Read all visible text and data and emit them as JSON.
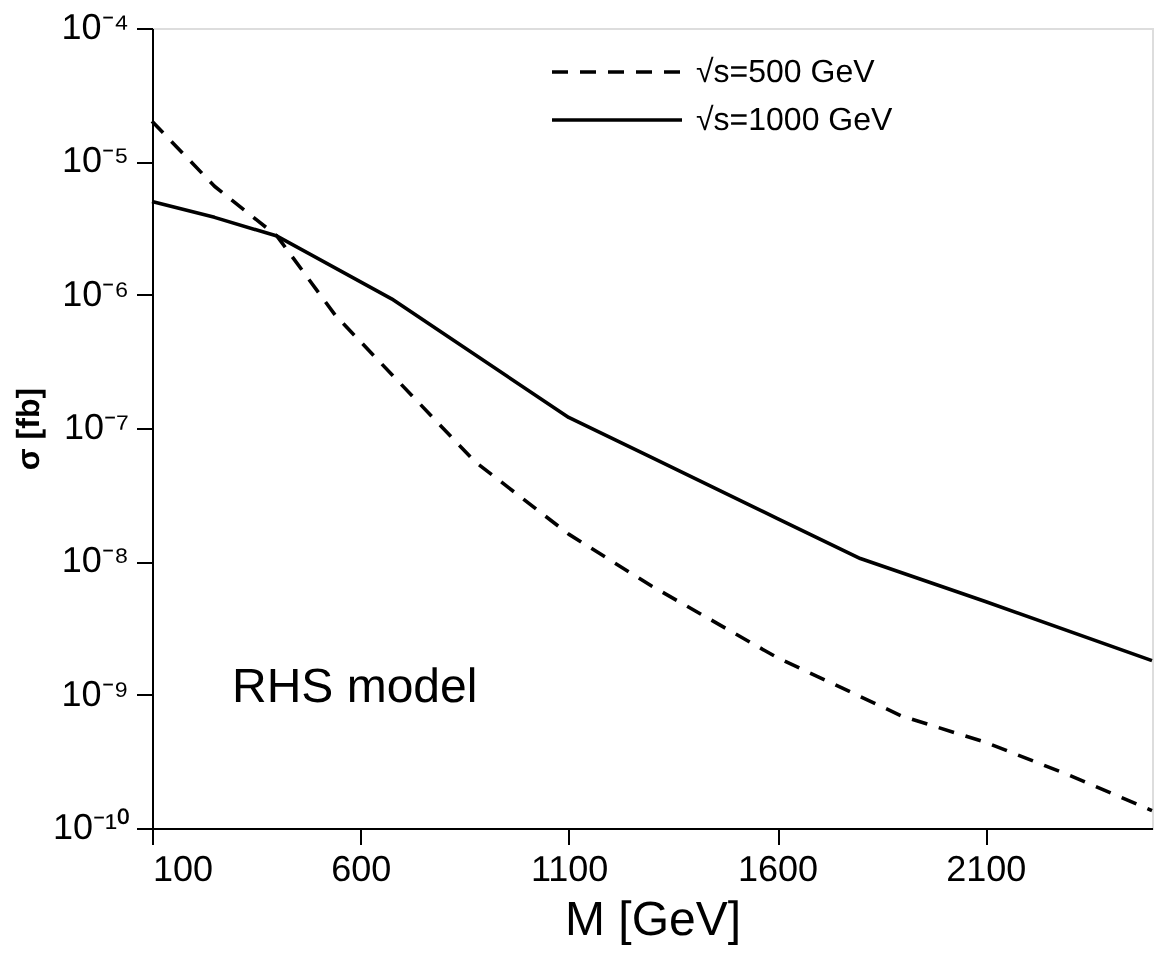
{
  "chart_data": {
    "type": "line",
    "xlabel": "M [GeV]",
    "ylabel": "σ [fb]",
    "log": "y",
    "grid": false,
    "legend": "top right",
    "marker": "none",
    "xlim": [
      100,
      2500
    ],
    "xticks": [
      100,
      600,
      1100,
      1600,
      2100
    ],
    "ylim": [
      1e-10,
      0.0001
    ],
    "yticks": [
      {
        "value": 1e-10,
        "label": "10⁻¹⁰"
      },
      {
        "value": 1e-09,
        "label": "10⁻⁹"
      },
      {
        "value": 1e-08,
        "label": "10⁻⁸"
      },
      {
        "value": 1e-07,
        "label": "10⁻⁷"
      },
      {
        "value": 1e-06,
        "label": "10⁻⁶"
      },
      {
        "value": 1e-05,
        "label": "10⁻⁵"
      },
      {
        "value": 0.0001,
        "label": "10⁻⁴"
      }
    ],
    "annotations": [
      "RHS model"
    ],
    "series": [
      {
        "name": "√s=500  GeV",
        "color": "#000000",
        "line_style": "dashed",
        "x": [
          100,
          250,
          400,
          540,
          875,
          1100,
          1300,
          1600,
          1900,
          2100,
          2300,
          2500
        ],
        "values": [
          2e-05,
          6.5e-06,
          2.75e-06,
          7e-07,
          5.6e-08,
          1.6e-08,
          6.5e-09,
          1.9e-09,
          6.9e-10,
          4.4e-10,
          2.5e-10,
          1.35e-10
        ]
      },
      {
        "name": "√s=1000  GeV",
        "color": "#000000",
        "line_style": "solid",
        "x": [
          100,
          250,
          400,
          675,
          1100,
          1300,
          1600,
          1800,
          2100,
          2500
        ],
        "values": [
          5e-06,
          3.8e-06,
          2.75e-06,
          9.3e-07,
          1.2e-07,
          6e-08,
          2.1e-08,
          1.05e-08,
          5e-09,
          1.8e-09
        ]
      }
    ]
  }
}
